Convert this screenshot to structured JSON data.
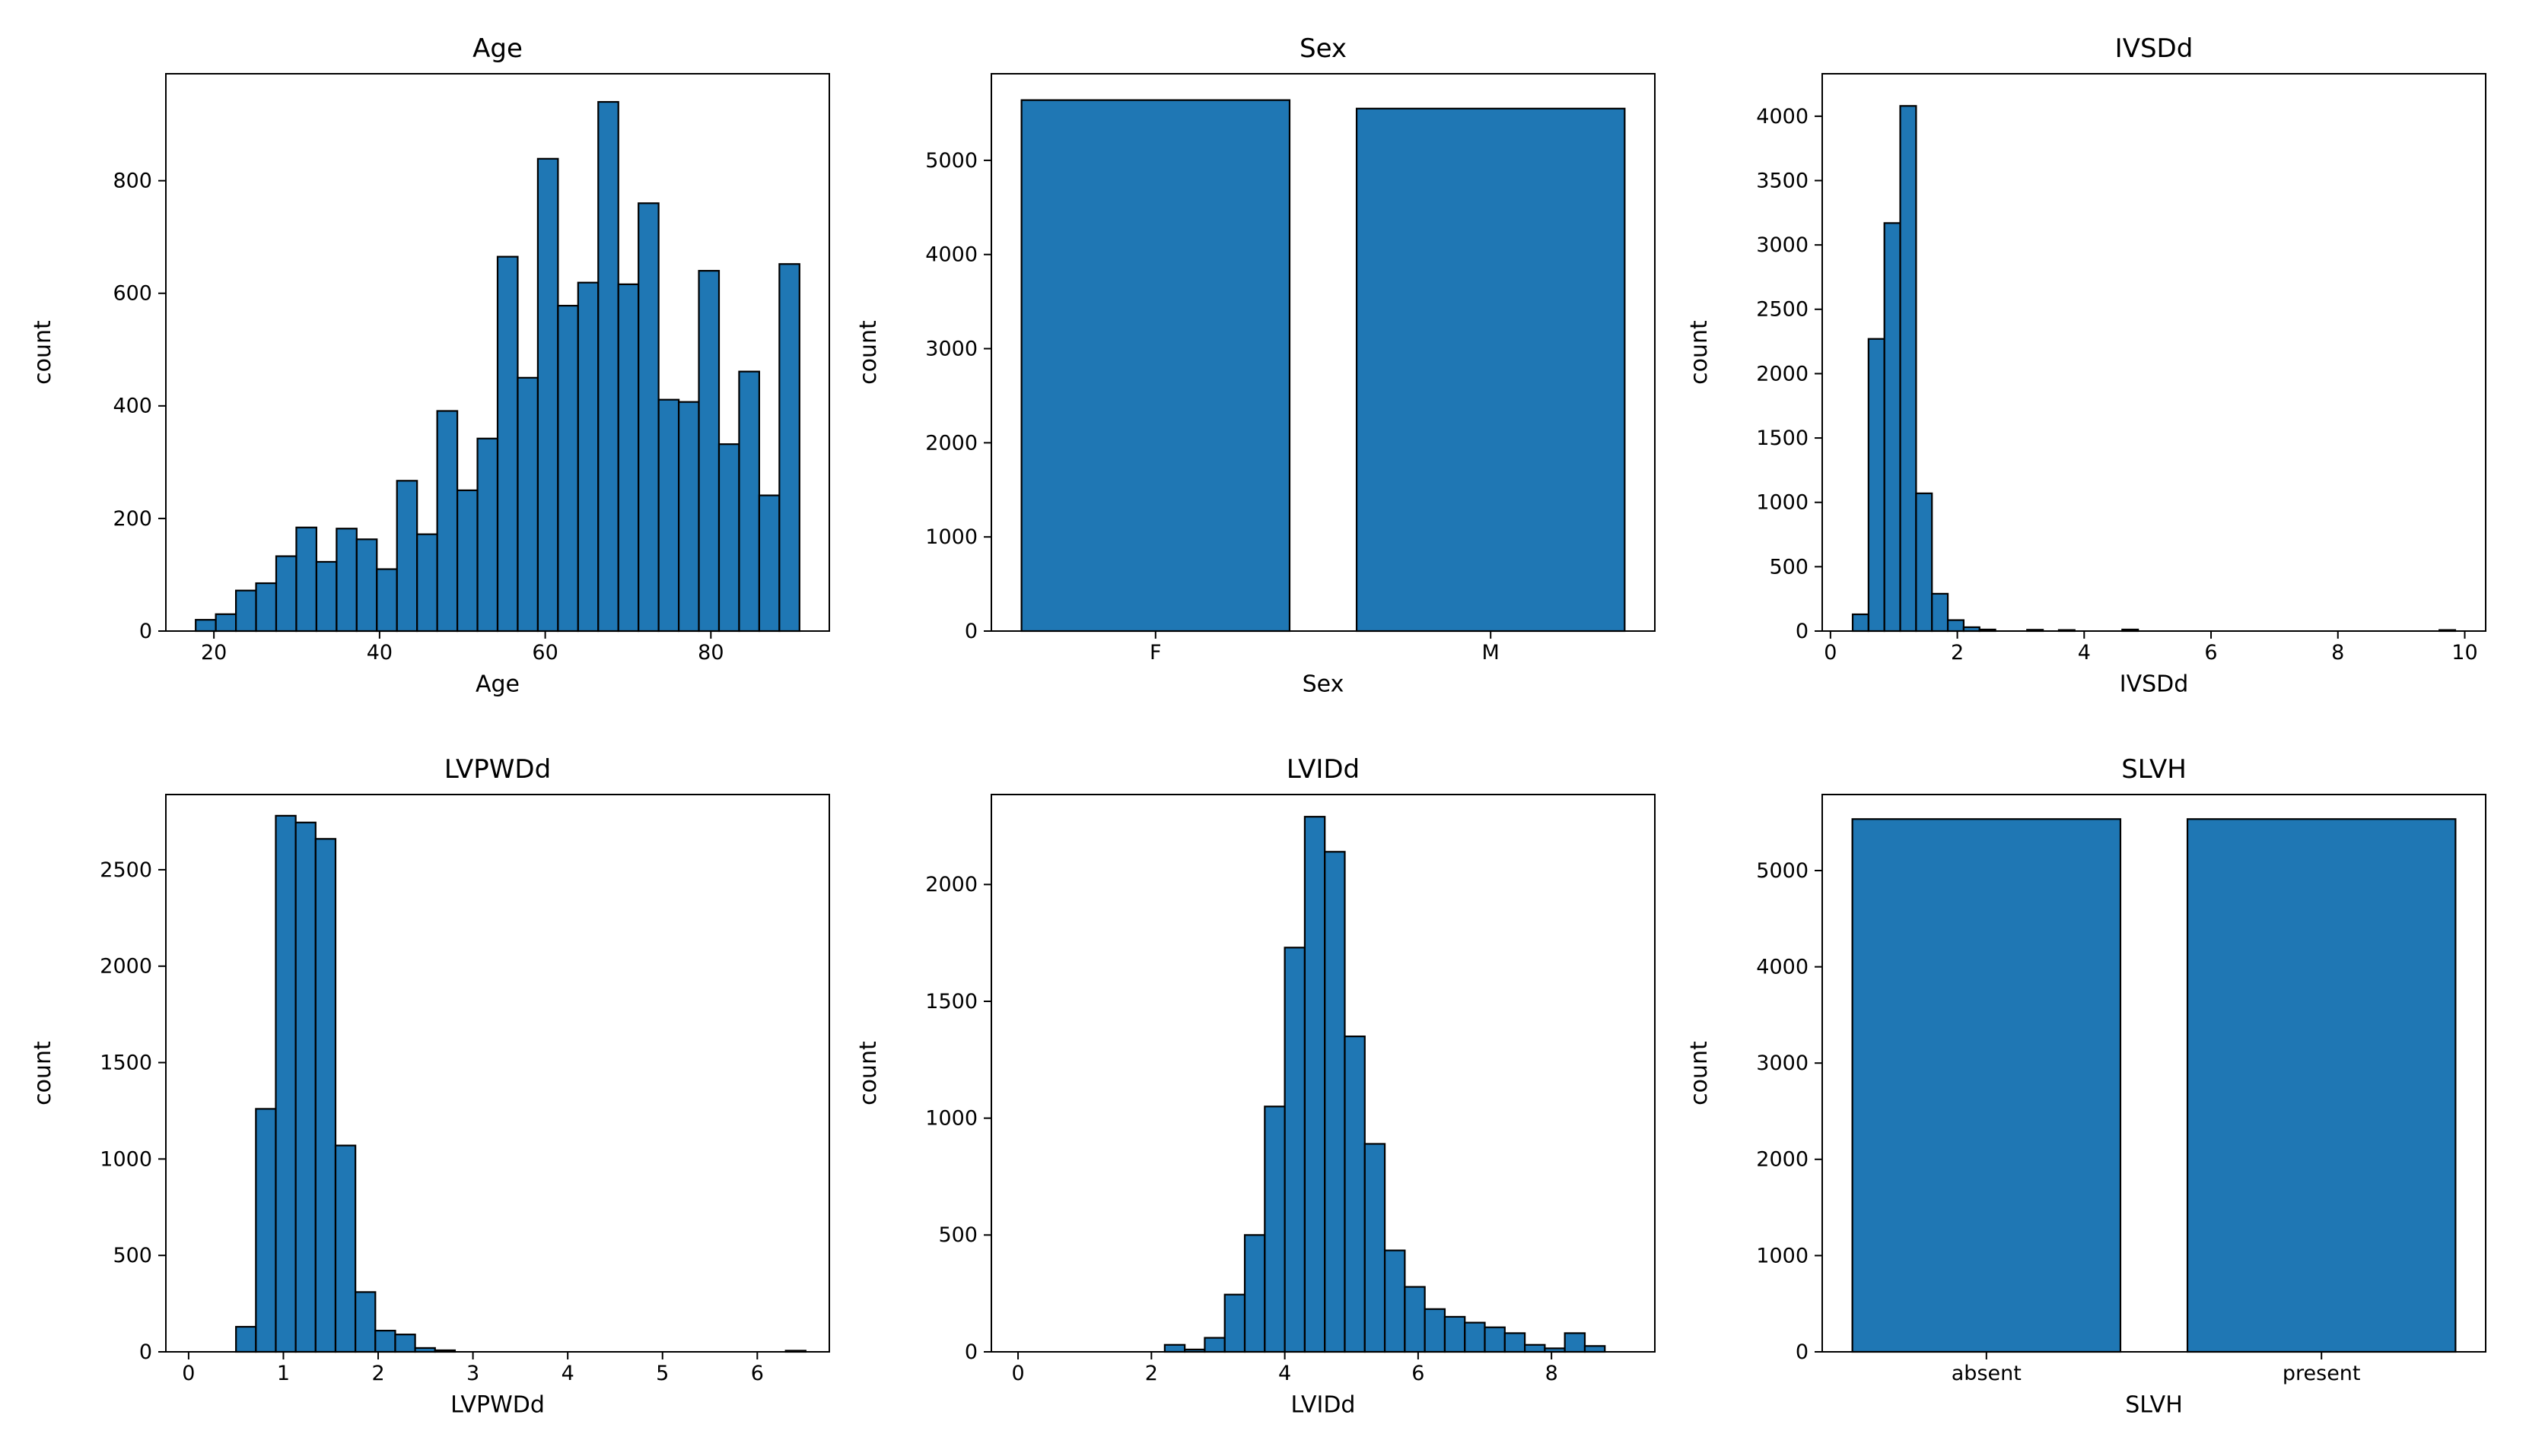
{
  "figure": {
    "background": "#ffffff",
    "bar_fill": "#1f77b4",
    "bar_edge": "#000000",
    "text_color": "#000000",
    "shared_ylabel": "count"
  },
  "chart_data": [
    {
      "type": "bar-histogram",
      "title": "Age",
      "xlabel": "Age",
      "ylabel": "count",
      "xlim": [
        14.2,
        94.3
      ],
      "ylim": [
        0,
        990
      ],
      "xticks": [
        20,
        40,
        60,
        80
      ],
      "yticks": [
        0,
        200,
        400,
        600,
        800
      ],
      "bin_start": 17.8,
      "bin_width": 2.43,
      "values": [
        20,
        30,
        72,
        85,
        133,
        184,
        123,
        182,
        163,
        110,
        267,
        172,
        391,
        250,
        342,
        665,
        450,
        839,
        578,
        619,
        940,
        616,
        760,
        411,
        407,
        640,
        332,
        461,
        241,
        652
      ],
      "extra_bars": []
    },
    {
      "type": "bar",
      "title": "Sex",
      "xlabel": "Sex",
      "ylabel": "count",
      "categories": [
        "F",
        "M"
      ],
      "values": [
        5640,
        5550
      ],
      "ylim": [
        0,
        5920
      ],
      "yticks": [
        0,
        1000,
        2000,
        3000,
        4000,
        5000
      ],
      "bar_width": 0.8
    },
    {
      "type": "bar-histogram",
      "title": "IVSDd",
      "xlabel": "IVSDd",
      "ylabel": "count",
      "xlim": [
        -0.13,
        10.33
      ],
      "ylim": [
        0,
        4330
      ],
      "xticks": [
        0,
        2,
        4,
        6,
        8,
        10
      ],
      "yticks": [
        0,
        500,
        1000,
        1500,
        2000,
        2500,
        3000,
        3500,
        4000
      ],
      "bin_start": 0.35,
      "bin_width": 0.25,
      "values": [
        130,
        2270,
        3170,
        4080,
        1070,
        290,
        85,
        30,
        12,
        6,
        4,
        10,
        5
      ],
      "extra_bars": [
        {
          "x0": 3.6,
          "x1": 3.85,
          "v": 8
        },
        {
          "x0": 4.6,
          "x1": 4.85,
          "v": 12
        },
        {
          "x0": 9.6,
          "x1": 9.85,
          "v": 8
        }
      ]
    },
    {
      "type": "bar-histogram",
      "title": "LVPWDd",
      "xlabel": "LVPWDd",
      "ylabel": "count",
      "xlim": [
        -0.24,
        6.76
      ],
      "ylim": [
        0,
        2890
      ],
      "xticks": [
        0,
        1,
        2,
        3,
        4,
        5,
        6
      ],
      "yticks": [
        0,
        500,
        1000,
        1500,
        2000,
        2500
      ],
      "bin_start": 0.5,
      "bin_width": 0.21,
      "values": [
        130,
        1260,
        2780,
        2745,
        2660,
        1070,
        310,
        110,
        90,
        20,
        8
      ],
      "extra_bars": [
        {
          "x0": 6.3,
          "x1": 6.51,
          "v": 6
        }
      ]
    },
    {
      "type": "bar-histogram",
      "title": "LVIDd",
      "xlabel": "LVIDd",
      "ylabel": "count",
      "xlim": [
        -0.4,
        9.55
      ],
      "ylim": [
        0,
        2385
      ],
      "xticks": [
        0,
        2,
        4,
        6,
        8
      ],
      "yticks": [
        0,
        500,
        1000,
        1500,
        2000
      ],
      "bin_start": 2.2,
      "bin_width": 0.3,
      "values": [
        30,
        10,
        60,
        245,
        500,
        1050,
        1730,
        2290,
        2140,
        1350,
        890,
        434,
        278,
        183,
        150,
        125,
        105,
        80,
        30,
        15
      ],
      "extra_bars": [
        {
          "x0": 8.2,
          "x1": 8.5,
          "v": 80
        },
        {
          "x0": 8.5,
          "x1": 8.8,
          "v": 25
        },
        {
          "x0": 0.0,
          "x1": 0.3,
          "v": 2
        }
      ]
    },
    {
      "type": "bar",
      "title": "SLVH",
      "xlabel": "SLVH",
      "ylabel": "count",
      "categories": [
        "absent",
        "present"
      ],
      "values": [
        5535,
        5535
      ],
      "ylim": [
        0,
        5790
      ],
      "yticks": [
        0,
        1000,
        2000,
        3000,
        4000,
        5000
      ],
      "bar_width": 0.8
    }
  ]
}
